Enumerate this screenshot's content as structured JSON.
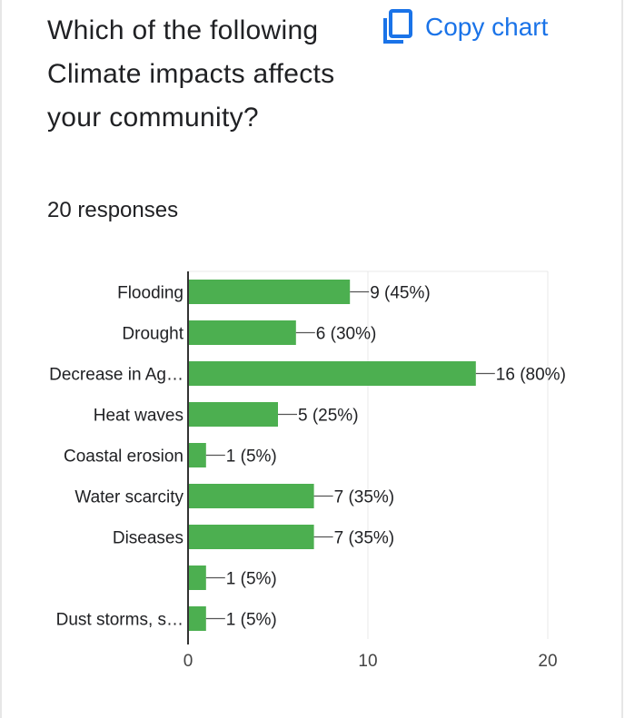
{
  "question": {
    "title": "Which of the following Climate impacts affects your community?",
    "responses": "20 responses"
  },
  "toolbar": {
    "copy_label": "Copy chart",
    "copy_icon": "copy-icon"
  },
  "colors": {
    "bar": "#4caf50",
    "accent": "#1a73e8",
    "text": "#202124",
    "grid": "#e8e8e8",
    "axis": "#333333"
  },
  "chart_data": {
    "type": "bar",
    "orientation": "horizontal",
    "categories": [
      "Flooding",
      "Drought",
      "Decrease in Ag…",
      "Heat waves",
      "Coastal erosion",
      "Water scarcity",
      "Diseases",
      "",
      "Dust storms, s…"
    ],
    "values": [
      9,
      6,
      16,
      5,
      1,
      7,
      7,
      1,
      1
    ],
    "data_labels": [
      "9 (45%)",
      "6 (30%)",
      "16 (80%)",
      "5 (25%)",
      "1 (5%)",
      "7 (35%)",
      "7 (35%)",
      "1 (5%)",
      "1 (5%)"
    ],
    "xlim": [
      0,
      20
    ],
    "xticks": [
      0,
      10,
      20
    ],
    "grid": true
  }
}
